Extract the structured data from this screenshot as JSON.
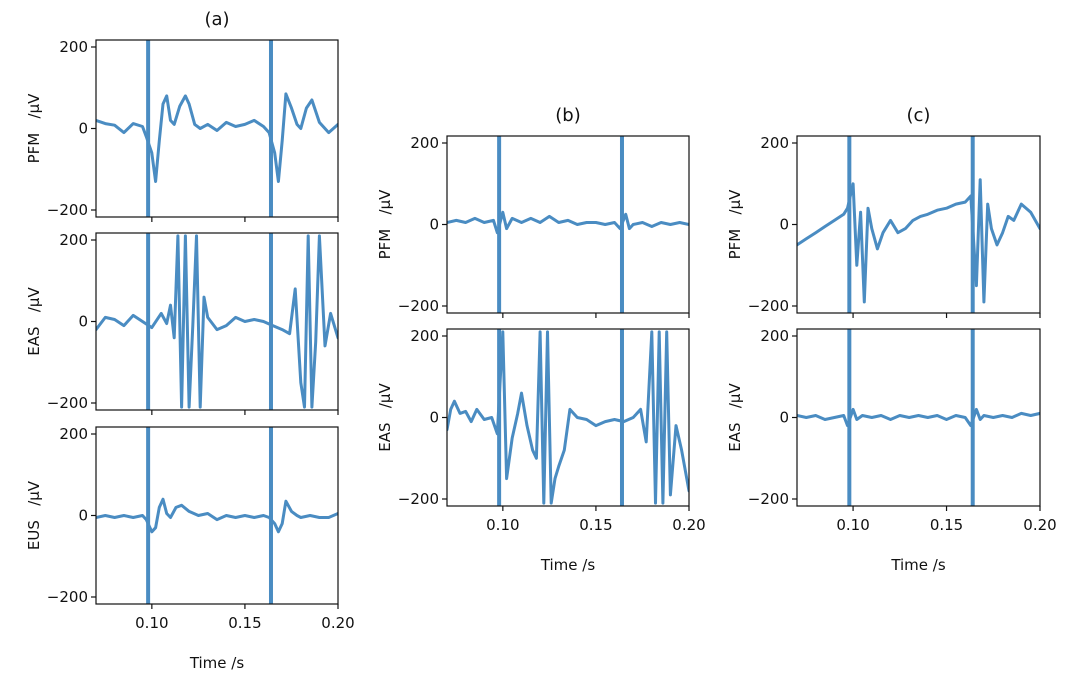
{
  "chart_data": [
    {
      "type": "line",
      "title": "(a)",
      "xlabel": "Time /s",
      "xlim": [
        0.07,
        0.2
      ],
      "xticks": [
        "0.10",
        "0.15",
        "0.20"
      ],
      "line_color": "#4a8cc2",
      "panels": [
        {
          "ylabel": "PFM   /µV",
          "ylim": [
            -210,
            210
          ],
          "yticks": [
            "200",
            "0",
            "−200"
          ],
          "spikes": [
            0.098,
            0.164
          ],
          "series": [
            {
              "x": [
                0.07,
                0.075,
                0.08,
                0.085,
                0.09,
                0.095,
                0.097,
                0.1,
                0.102,
                0.104,
                0.106,
                0.108,
                0.11,
                0.112,
                0.115,
                0.118,
                0.12,
                0.123,
                0.126,
                0.13,
                0.135,
                0.14,
                0.145,
                0.15,
                0.155,
                0.16,
                0.163,
                0.166,
                0.168,
                0.17,
                0.172,
                0.175,
                0.178,
                0.18,
                0.183,
                0.186,
                0.19,
                0.195,
                0.2
              ],
              "y": [
                20,
                12,
                8,
                -10,
                12,
                5,
                -20,
                -60,
                -130,
                -30,
                60,
                80,
                20,
                10,
                55,
                80,
                60,
                10,
                0,
                10,
                -5,
                15,
                5,
                10,
                20,
                5,
                -10,
                -60,
                -130,
                -30,
                85,
                50,
                10,
                0,
                50,
                70,
                15,
                -10,
                10
              ]
            }
          ]
        },
        {
          "ylabel": "EAS   /µV",
          "ylim": [
            -210,
            210
          ],
          "yticks": [
            "200",
            "0",
            "−200"
          ],
          "spikes": [
            0.098,
            0.164
          ],
          "series": [
            {
              "x": [
                0.07,
                0.075,
                0.08,
                0.085,
                0.09,
                0.095,
                0.1,
                0.105,
                0.108,
                0.11,
                0.112,
                0.114,
                0.116,
                0.118,
                0.12,
                0.122,
                0.124,
                0.126,
                0.128,
                0.13,
                0.135,
                0.14,
                0.145,
                0.15,
                0.155,
                0.16,
                0.165,
                0.17,
                0.174,
                0.177,
                0.18,
                0.182,
                0.184,
                0.186,
                0.188,
                0.19,
                0.193,
                0.196,
                0.2
              ],
              "y": [
                -20,
                10,
                5,
                -10,
                15,
                0,
                -15,
                20,
                -5,
                40,
                -40,
                210,
                -210,
                210,
                -210,
                -10,
                210,
                -210,
                60,
                10,
                -20,
                -10,
                10,
                0,
                5,
                0,
                -10,
                -20,
                -30,
                80,
                -150,
                -210,
                210,
                -210,
                -50,
                210,
                -60,
                20,
                -40
              ]
            }
          ]
        },
        {
          "ylabel": "EUS   /µV",
          "ylim": [
            -210,
            210
          ],
          "yticks": [
            "200",
            "0",
            "−200"
          ],
          "spikes": [
            0.098,
            0.164
          ],
          "series": [
            {
              "x": [
                0.07,
                0.075,
                0.08,
                0.085,
                0.09,
                0.095,
                0.097,
                0.1,
                0.102,
                0.104,
                0.106,
                0.108,
                0.11,
                0.113,
                0.116,
                0.12,
                0.125,
                0.13,
                0.135,
                0.14,
                0.145,
                0.15,
                0.155,
                0.16,
                0.163,
                0.166,
                0.168,
                0.17,
                0.172,
                0.175,
                0.178,
                0.18,
                0.185,
                0.19,
                0.195,
                0.2
              ],
              "y": [
                -5,
                0,
                -5,
                0,
                -5,
                0,
                -10,
                -40,
                -30,
                20,
                40,
                5,
                -5,
                20,
                25,
                10,
                0,
                5,
                -10,
                0,
                -5,
                0,
                -5,
                0,
                -5,
                -20,
                -40,
                -20,
                35,
                10,
                0,
                -5,
                0,
                -5,
                -5,
                5
              ]
            }
          ]
        }
      ]
    },
    {
      "type": "line",
      "title": "(b)",
      "xlabel": "Time /s",
      "xlim": [
        0.07,
        0.2
      ],
      "xticks": [
        "0.10",
        "0.15",
        "0.20"
      ],
      "line_color": "#4a8cc2",
      "panels": [
        {
          "ylabel": "PFM   /µV",
          "ylim": [
            -210,
            210
          ],
          "yticks": [
            "200",
            "0",
            "−200"
          ],
          "spikes": [
            0.098,
            0.164
          ],
          "series": [
            {
              "x": [
                0.07,
                0.075,
                0.08,
                0.085,
                0.09,
                0.095,
                0.097,
                0.1,
                0.102,
                0.105,
                0.11,
                0.115,
                0.12,
                0.125,
                0.13,
                0.135,
                0.14,
                0.145,
                0.15,
                0.155,
                0.16,
                0.163,
                0.166,
                0.168,
                0.17,
                0.175,
                0.18,
                0.185,
                0.19,
                0.195,
                0.2
              ],
              "y": [
                5,
                10,
                5,
                15,
                5,
                10,
                -20,
                30,
                -10,
                15,
                5,
                15,
                5,
                20,
                5,
                10,
                0,
                5,
                5,
                0,
                5,
                -10,
                25,
                -10,
                0,
                5,
                -5,
                5,
                0,
                5,
                0
              ]
            }
          ]
        },
        {
          "ylabel": "EAS   /µV",
          "ylim": [
            -210,
            210
          ],
          "yticks": [
            "200",
            "0",
            "−200"
          ],
          "spikes": [
            0.098,
            0.164
          ],
          "series": [
            {
              "x": [
                0.07,
                0.072,
                0.074,
                0.077,
                0.08,
                0.083,
                0.086,
                0.09,
                0.094,
                0.097,
                0.1,
                0.102,
                0.105,
                0.108,
                0.11,
                0.113,
                0.116,
                0.118,
                0.12,
                0.122,
                0.124,
                0.126,
                0.128,
                0.13,
                0.133,
                0.136,
                0.14,
                0.145,
                0.15,
                0.155,
                0.16,
                0.165,
                0.17,
                0.174,
                0.177,
                0.18,
                0.182,
                0.184,
                0.186,
                0.188,
                0.19,
                0.193,
                0.196,
                0.2
              ],
              "y": [
                -30,
                20,
                40,
                10,
                15,
                -10,
                20,
                -5,
                0,
                -40,
                210,
                -150,
                -50,
                10,
                60,
                -20,
                -80,
                -100,
                210,
                -210,
                210,
                -210,
                -150,
                -120,
                -80,
                20,
                0,
                -5,
                -20,
                -10,
                -5,
                -10,
                0,
                20,
                -60,
                210,
                -210,
                210,
                -210,
                210,
                -190,
                -20,
                -80,
                -180
              ]
            }
          ]
        }
      ]
    },
    {
      "type": "line",
      "title": "(c)",
      "xlabel": "Time /s",
      "xlim": [
        0.07,
        0.2
      ],
      "xticks": [
        "0.10",
        "0.15",
        "0.20"
      ],
      "line_color": "#4a8cc2",
      "panels": [
        {
          "ylabel": "PFM   /µV",
          "ylim": [
            -210,
            210
          ],
          "yticks": [
            "200",
            "0",
            "−200"
          ],
          "spikes": [
            0.098,
            0.164
          ],
          "series": [
            {
              "x": [
                0.07,
                0.075,
                0.08,
                0.085,
                0.09,
                0.095,
                0.097,
                0.1,
                0.102,
                0.104,
                0.106,
                0.108,
                0.11,
                0.113,
                0.116,
                0.12,
                0.124,
                0.128,
                0.132,
                0.136,
                0.14,
                0.145,
                0.15,
                0.155,
                0.16,
                0.163,
                0.166,
                0.168,
                0.17,
                0.172,
                0.174,
                0.177,
                0.18,
                0.183,
                0.186,
                0.19,
                0.195,
                0.2
              ],
              "y": [
                -50,
                -35,
                -20,
                -5,
                10,
                25,
                40,
                100,
                -100,
                30,
                -190,
                40,
                -10,
                -60,
                -20,
                10,
                -20,
                -10,
                10,
                20,
                25,
                35,
                40,
                50,
                55,
                70,
                -150,
                110,
                -190,
                50,
                -10,
                -50,
                -20,
                20,
                10,
                50,
                30,
                -10
              ]
            }
          ]
        },
        {
          "ylabel": "EAS   /µV",
          "ylim": [
            -210,
            210
          ],
          "yticks": [
            "200",
            "0",
            "−200"
          ],
          "spikes": [
            0.098,
            0.164
          ],
          "series": [
            {
              "x": [
                0.07,
                0.075,
                0.08,
                0.085,
                0.09,
                0.095,
                0.097,
                0.1,
                0.102,
                0.105,
                0.11,
                0.115,
                0.12,
                0.125,
                0.13,
                0.135,
                0.14,
                0.145,
                0.15,
                0.155,
                0.16,
                0.163,
                0.166,
                0.168,
                0.17,
                0.175,
                0.18,
                0.185,
                0.19,
                0.195,
                0.2
              ],
              "y": [
                5,
                0,
                5,
                -5,
                0,
                5,
                -20,
                20,
                -5,
                5,
                0,
                5,
                -5,
                5,
                0,
                5,
                0,
                5,
                -5,
                5,
                0,
                -20,
                20,
                -5,
                5,
                0,
                5,
                0,
                10,
                5,
                10
              ]
            }
          ]
        }
      ]
    }
  ]
}
